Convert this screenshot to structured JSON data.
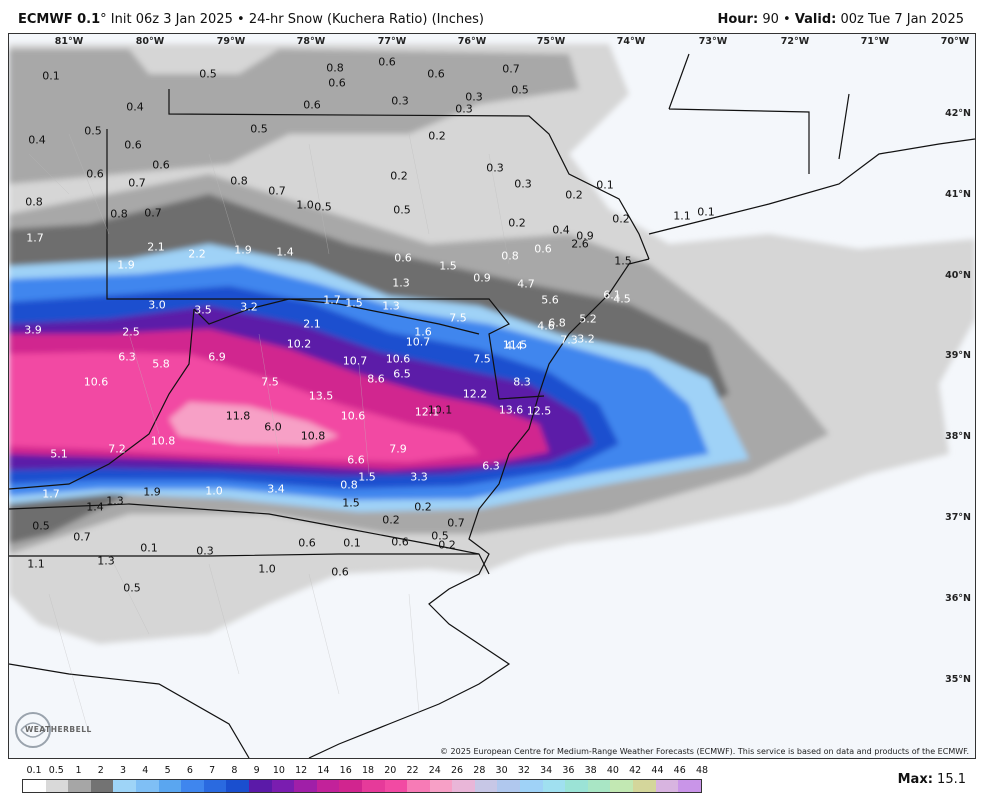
{
  "header": {
    "model": "ECMWF 0.1",
    "degree": "°",
    "init_text": "Init 06z 3 Jan 2025",
    "separator": "•",
    "product": "24-hr Snow (Kuchera Ratio) (Inches)",
    "hour_label": "Hour:",
    "hour_value": "90",
    "valid_label": "Valid:",
    "valid_value": "00z Tue 7 Jan 2025"
  },
  "map": {
    "longitudes": [
      "81°W",
      "80°W",
      "79°W",
      "78°W",
      "77°W",
      "76°W",
      "75°W",
      "74°W",
      "73°W",
      "72°W",
      "71°W",
      "70°W"
    ],
    "latitudes": [
      "42°N",
      "41°N",
      "40°N",
      "39°N",
      "38°N",
      "37°N",
      "36°N",
      "35°N"
    ],
    "copyright": "© 2025 European Centre for Medium-Range Weather Forecasts (ECMWF). This service is based on data and products of the ECMWF.",
    "logo": "WEATHERBELL",
    "colors": {
      "background": "#f4f7fb",
      "snow_light_gray": "#d6d6d6",
      "snow_mid_gray": "#a4a4a4",
      "snow_dark_gray": "#6e6e6e",
      "snow_light_blue": "#9fd2f7",
      "snow_blue": "#3f86ee",
      "snow_deep_blue": "#1a4fcf",
      "snow_purple": "#5b1aa8",
      "snow_magenta": "#d1258f",
      "snow_pink": "#f24aa3",
      "snow_light_pink": "#f7a0c6"
    }
  },
  "values": [
    "0.1",
    "0.5",
    "0.8",
    "0.6",
    "0.6",
    "0.7",
    "0.5",
    "0.4",
    "0.5",
    "0.5",
    "0.3",
    "0.3",
    "0.3",
    "0.4",
    "0.6",
    "0.6",
    "0.6",
    "0.2",
    "0.6",
    "0.6",
    "0.7",
    "0.8",
    "0.7",
    "0.3",
    "0.2",
    "0.3",
    "0.2",
    "0.1",
    "0.8",
    "0.8",
    "0.7",
    "1.0",
    "0.5",
    "0.5",
    "0.2",
    "0.2",
    "0.1",
    "1.1",
    "1.7",
    "2.1",
    "2.2",
    "1.9",
    "1.4",
    "0.6",
    "0.4",
    "0.9",
    "0.6",
    "2.6",
    "1.9",
    "1.3",
    "1.5",
    "0.9",
    "0.8",
    "1.5",
    "4.7",
    "6.1",
    "4.5",
    "3.0",
    "3.5",
    "3.2",
    "1.7",
    "1.5",
    "1.3",
    "5.6",
    "6.8",
    "5.2",
    "3.9",
    "2.5",
    "2.1",
    "1.6",
    "7.5",
    "4.6",
    "4.4",
    "3.2",
    "10.2",
    "10.7",
    "11.5",
    "7.3",
    "6.3",
    "5.8",
    "6.9",
    "10.7",
    "10.6",
    "7.5",
    "6.5",
    "10.6",
    "7.5",
    "8.6",
    "8.3",
    "13.5",
    "12.2",
    "10.1",
    "13.6",
    "12.5",
    "11.8",
    "10.6",
    "12.1",
    "6.0",
    "10.8",
    "10.8",
    "7.2",
    "7.9",
    "5.1",
    "6.6",
    "6.3",
    "1.5",
    "3.3",
    "1.0",
    "3.4",
    "0.8",
    "1.7",
    "1.9",
    "1.3",
    "1.5",
    "1.4",
    "0.2",
    "0.2",
    "0.5",
    "0.7",
    "0.7",
    "0.5",
    "0.2",
    "0.1",
    "0.3",
    "0.6",
    "0.1",
    "0.6",
    "1.1",
    "1.3",
    "1.0",
    "0.6",
    "0.5"
  ],
  "legend": {
    "labels": [
      "0.1",
      "0.5",
      "1",
      "2",
      "3",
      "4",
      "5",
      "6",
      "7",
      "8",
      "9",
      "10",
      "12",
      "14",
      "16",
      "18",
      "20",
      "22",
      "24",
      "26",
      "28",
      "30",
      "32",
      "34",
      "36",
      "38",
      "40",
      "42",
      "44",
      "46",
      "48"
    ],
    "colors": [
      "#ffffff",
      "#d9d9d9",
      "#a6a6a6",
      "#737373",
      "#9ed4f7",
      "#7fbff5",
      "#5aa6f0",
      "#3f86ee",
      "#2a6ae0",
      "#1a4fcf",
      "#5b1aa8",
      "#7a1db0",
      "#a01fa8",
      "#c2229a",
      "#d1258f",
      "#e63a9a",
      "#f24aa3",
      "#f77bb6",
      "#f7a0c6",
      "#e9b6d8",
      "#c7c7e6",
      "#b0c8ee",
      "#9fd2f7",
      "#a0e0f0",
      "#9be3d6",
      "#a9e6c5",
      "#c2e8b3",
      "#d4d69b",
      "#d8b4e0",
      "#c995e8"
    ],
    "max_label": "Max:",
    "max_value": "15.1"
  }
}
